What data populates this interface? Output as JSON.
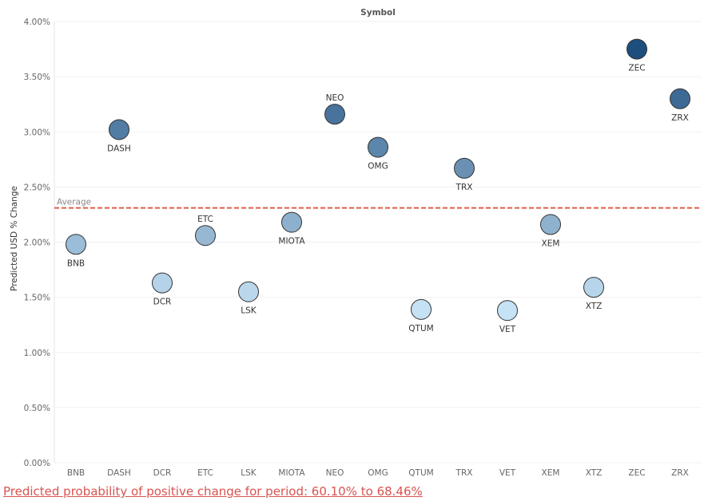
{
  "chart_data": {
    "type": "scatter",
    "title": "Symbol",
    "ylabel": "Predicted USD % Change",
    "xlabel": "",
    "ylim": [
      0,
      4
    ],
    "y_ticks": [
      "0.00%",
      "0.50%",
      "1.00%",
      "1.50%",
      "2.00%",
      "2.50%",
      "3.00%",
      "3.50%",
      "4.00%"
    ],
    "y_tick_values": [
      0,
      0.5,
      1,
      1.5,
      2,
      2.5,
      3,
      3.5,
      4
    ],
    "categories": [
      "BNB",
      "DASH",
      "DCR",
      "ETC",
      "LSK",
      "MIOTA",
      "NEO",
      "OMG",
      "QTUM",
      "TRX",
      "VET",
      "XEM",
      "XTZ",
      "ZEC",
      "ZRX"
    ],
    "values": [
      1.98,
      3.02,
      1.63,
      2.06,
      1.55,
      2.18,
      3.16,
      2.86,
      1.39,
      2.67,
      1.38,
      2.16,
      1.59,
      3.75,
      3.3
    ],
    "label_position": [
      "below",
      "below",
      "below",
      "above",
      "below",
      "below",
      "above",
      "below",
      "below",
      "below",
      "below",
      "below",
      "below",
      "below",
      "below"
    ],
    "color_scale": [
      "#c6e2f5",
      "#1d4e7e"
    ],
    "reference_line": {
      "label": "Average",
      "value": 2.31,
      "color": "#e05c4a"
    },
    "grid": true
  },
  "footer": {
    "text": "Predicted probability of positive change for period:  60.10% to 68.46%"
  }
}
